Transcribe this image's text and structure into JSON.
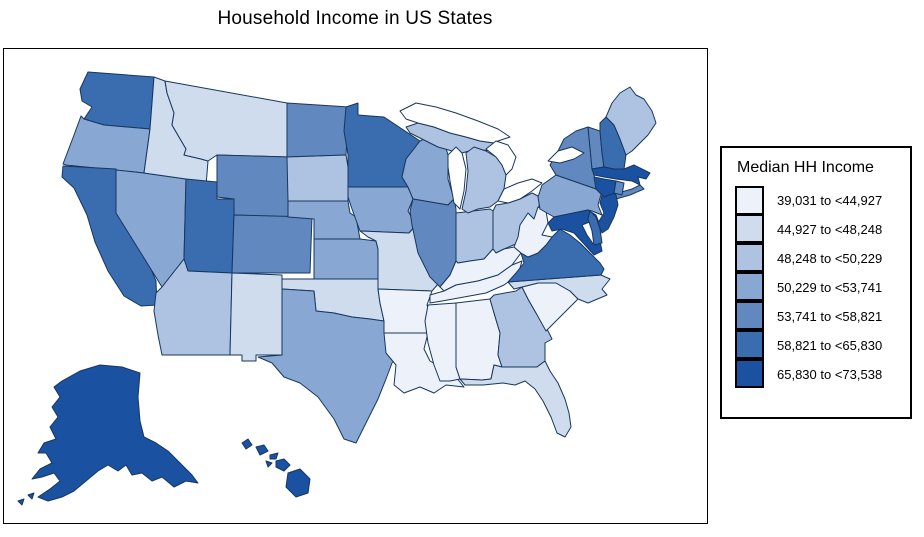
{
  "chart_data": {
    "type": "choropleth",
    "title": "Household Income in US States",
    "legend_title": "Median HH Income",
    "legend_position": "right",
    "background": "#FFFFFF",
    "panel_border_color": "#000000",
    "map_border_color": "#17375E",
    "water_color": "#FFFFFF",
    "classes": [
      {
        "label": "39,031 to <44,927",
        "color": "#EDF2FA"
      },
      {
        "label": "44,927 to <48,248",
        "color": "#CFDCEE"
      },
      {
        "label": "48,248 to <50,229",
        "color": "#AEC3E1"
      },
      {
        "label": "50,229 to <53,741",
        "color": "#88A7D2"
      },
      {
        "label": "53,741 to <58,821",
        "color": "#6189C0"
      },
      {
        "label": "58,821 to <65,830",
        "color": "#3A6CB0"
      },
      {
        "label": "65,830 to <73,538",
        "color": "#1A52A1"
      }
    ],
    "states": [
      {
        "id": "WA",
        "name": "Washington",
        "class": 6
      },
      {
        "id": "OR",
        "name": "Oregon",
        "class": 4
      },
      {
        "id": "CA",
        "name": "California",
        "class": 6
      },
      {
        "id": "NV",
        "name": "Nevada",
        "class": 4
      },
      {
        "id": "ID",
        "name": "Idaho",
        "class": 2
      },
      {
        "id": "MT",
        "name": "Montana",
        "class": 2
      },
      {
        "id": "WY",
        "name": "Wyoming",
        "class": 5
      },
      {
        "id": "UT",
        "name": "Utah",
        "class": 6
      },
      {
        "id": "CO",
        "name": "Colorado",
        "class": 5
      },
      {
        "id": "AZ",
        "name": "Arizona",
        "class": 3
      },
      {
        "id": "NM",
        "name": "New Mexico",
        "class": 2
      },
      {
        "id": "ND",
        "name": "North Dakota",
        "class": 5
      },
      {
        "id": "SD",
        "name": "South Dakota",
        "class": 3
      },
      {
        "id": "NE",
        "name": "Nebraska",
        "class": 4
      },
      {
        "id": "KS",
        "name": "Kansas",
        "class": 4
      },
      {
        "id": "OK",
        "name": "Oklahoma",
        "class": 2
      },
      {
        "id": "TX",
        "name": "Texas",
        "class": 4
      },
      {
        "id": "MN",
        "name": "Minnesota",
        "class": 6
      },
      {
        "id": "IA",
        "name": "Iowa",
        "class": 4
      },
      {
        "id": "MO",
        "name": "Missouri",
        "class": 2
      },
      {
        "id": "AR",
        "name": "Arkansas",
        "class": 1
      },
      {
        "id": "LA",
        "name": "Louisiana",
        "class": 1
      },
      {
        "id": "WI",
        "name": "Wisconsin",
        "class": 4
      },
      {
        "id": "IL",
        "name": "Illinois",
        "class": 5
      },
      {
        "id": "IN",
        "name": "Indiana",
        "class": 3
      },
      {
        "id": "OH",
        "name": "Ohio",
        "class": 3
      },
      {
        "id": "MI",
        "name": "Michigan",
        "class": 3
      },
      {
        "id": "KY",
        "name": "Kentucky",
        "class": 1
      },
      {
        "id": "TN",
        "name": "Tennessee",
        "class": 1
      },
      {
        "id": "MS",
        "name": "Mississippi",
        "class": 1
      },
      {
        "id": "AL",
        "name": "Alabama",
        "class": 1
      },
      {
        "id": "GA",
        "name": "Georgia",
        "class": 3
      },
      {
        "id": "FL",
        "name": "Florida",
        "class": 2
      },
      {
        "id": "SC",
        "name": "South Carolina",
        "class": 1
      },
      {
        "id": "NC",
        "name": "North Carolina",
        "class": 2
      },
      {
        "id": "VA",
        "name": "Virginia",
        "class": 6
      },
      {
        "id": "WV",
        "name": "West Virginia",
        "class": 1
      },
      {
        "id": "PA",
        "name": "Pennsylvania",
        "class": 4
      },
      {
        "id": "NY",
        "name": "New York",
        "class": 5
      },
      {
        "id": "VT",
        "name": "Vermont",
        "class": 5
      },
      {
        "id": "NH",
        "name": "New Hampshire",
        "class": 6
      },
      {
        "id": "ME",
        "name": "Maine",
        "class": 3
      },
      {
        "id": "MA",
        "name": "Massachusetts",
        "class": 7
      },
      {
        "id": "MD",
        "name": "Maryland",
        "class": 7
      },
      {
        "id": "DE",
        "name": "Delaware",
        "class": 6
      },
      {
        "id": "NJ",
        "name": "New Jersey",
        "class": 7
      },
      {
        "id": "CT",
        "name": "Connecticut",
        "class": 7
      },
      {
        "id": "RI",
        "name": "Rhode Island",
        "class": 5
      },
      {
        "id": "AK",
        "name": "Alaska",
        "class": 7
      },
      {
        "id": "HI",
        "name": "Hawaii",
        "class": 7
      }
    ]
  }
}
